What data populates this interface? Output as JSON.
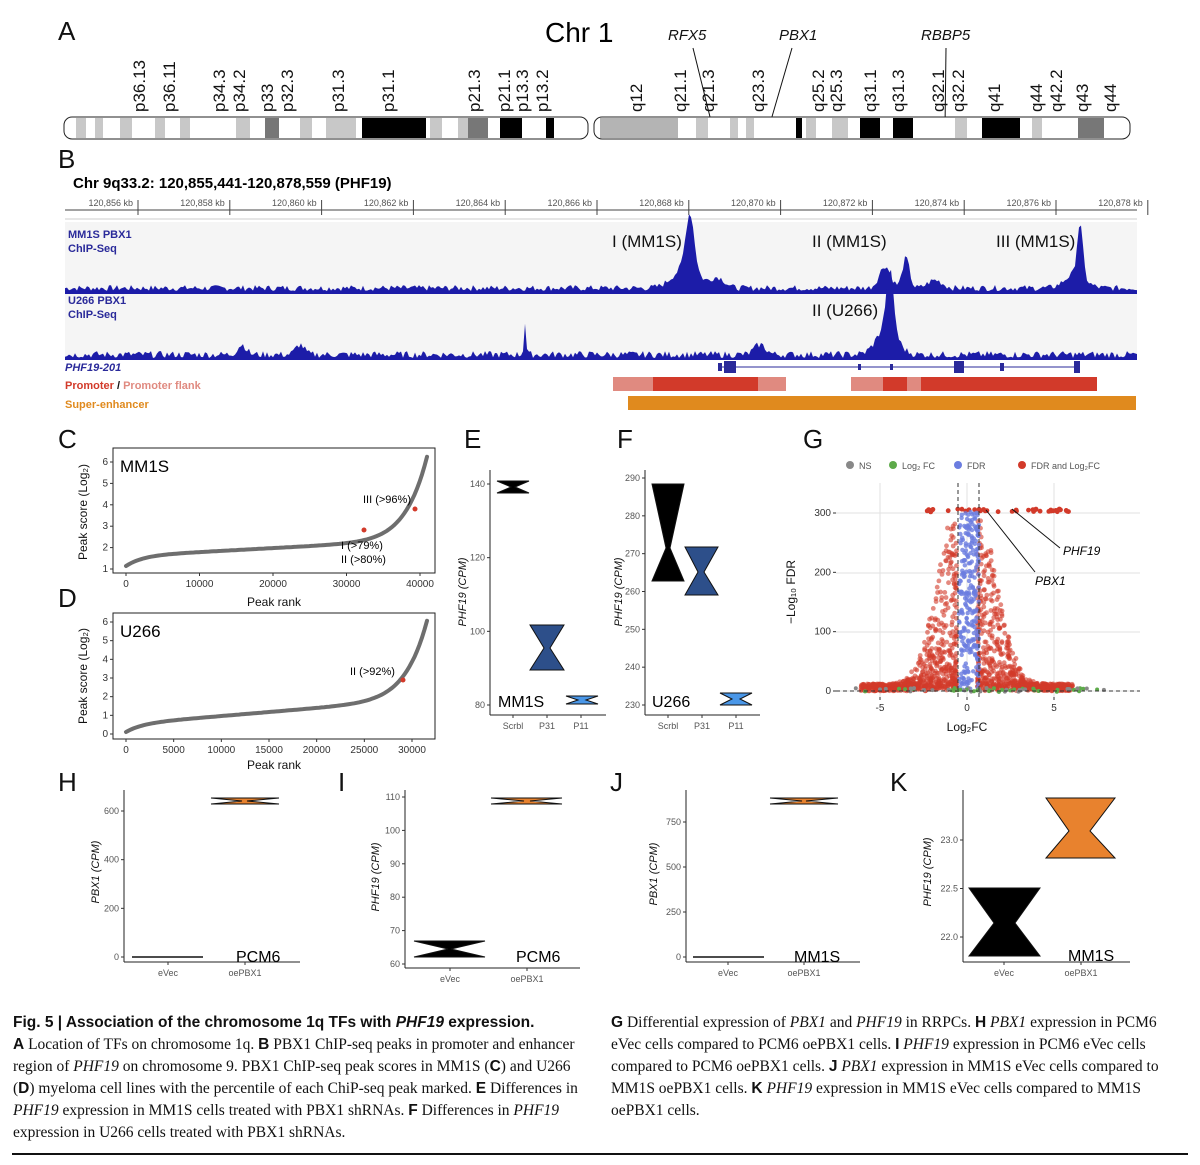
{
  "panels": {
    "A": "A",
    "B": "B",
    "C": "C",
    "D": "D",
    "E": "E",
    "F": "F",
    "G": "G",
    "H": "H",
    "I": "I",
    "J": "J",
    "K": "K"
  },
  "chr1": {
    "title": "Chr 1",
    "p_bands": [
      "p36.13",
      "p36.11",
      "p34.3",
      "p34.2",
      "p33",
      "p32.3",
      "p31.3",
      "p31.1",
      "p21.3",
      "p21.1",
      "p13.3",
      "p13.2"
    ],
    "q_bands": [
      "q12",
      "q21.1",
      "q21.3",
      "q23.3",
      "q25.2",
      "q25.3",
      "q31.1",
      "q31.3",
      "q32.1",
      "q32.2",
      "q41",
      "q44",
      "q42.2",
      "q43",
      "q44"
    ],
    "genes": [
      "RFX5",
      "PBX1",
      "RBBP5"
    ]
  },
  "chipseq": {
    "title": "Chr 9q33.2: 120,855,441-120,878,559 (PHF19)",
    "ruler": [
      "120,856 kb",
      "120,858 kb",
      "120,860 kb",
      "120,862 kb",
      "120,864 kb",
      "120,866 kb",
      "120,868 kb",
      "120,870 kb",
      "120,872 kb",
      "120,874 kb",
      "120,876 kb",
      "120,878 kb"
    ],
    "track1_l1": "MM1S PBX1",
    "track1_l2": "ChIP-Seq",
    "track2_l1": "U266 PBX1",
    "track2_l2": "ChIP-Seq",
    "peak_I": "I (MM1S)",
    "peak_II": "II (MM1S)",
    "peak_III": "III (MM1S)",
    "peak_U": "II (U266)",
    "transcript": "PHF19-201",
    "promoter": "Promoter",
    "slash": " / ",
    "promoter_flank": "Promoter flank",
    "super_enhancer": "Super-enhancer",
    "colors": {
      "signal": "#1c1ca8",
      "promoter": "#d23a2a",
      "flank": "#e08a80",
      "enhancer": "#e08a1e"
    }
  },
  "panelC": {
    "cell": "MM1S",
    "ylabel": "Peak score (Log₂)",
    "xlabel": "Peak rank",
    "yticks": [
      "1",
      "2",
      "3",
      "4",
      "5",
      "6"
    ],
    "xticks": [
      "0",
      "10000",
      "20000",
      "30000",
      "40000"
    ],
    "ann": [
      "III (>96%)",
      "I (>79%)",
      "II (>80%)"
    ]
  },
  "panelD": {
    "cell": "U266",
    "ylabel": "Peak score (Log₂)",
    "xlabel": "Peak rank",
    "yticks": [
      "0",
      "1",
      "2",
      "3",
      "4",
      "5",
      "6"
    ],
    "xticks": [
      "0",
      "5000",
      "10000",
      "15000",
      "20000",
      "25000",
      "30000"
    ],
    "ann": [
      "II (>92%)"
    ]
  },
  "panelE": {
    "cell": "MM1S",
    "ylabel": "PHF19 (CPM)",
    "yticks": [
      "80",
      "100",
      "120",
      "140"
    ],
    "xticks": [
      "Scrbl",
      "P31",
      "P11"
    ]
  },
  "panelF": {
    "cell": "U266",
    "ylabel": "PHF19 (CPM)",
    "yticks": [
      "230",
      "240",
      "250",
      "260",
      "270",
      "280",
      "290"
    ],
    "xticks": [
      "Scrbl",
      "P31",
      "P11"
    ]
  },
  "panelG": {
    "legend": [
      "NS",
      "Log₂ FC",
      "FDR",
      "FDR and Log₂FC"
    ],
    "legend_colors": [
      "#888888",
      "#5daa4a",
      "#6b7de0",
      "#d23a2a"
    ],
    "xlabel": "Log₂FC",
    "ylabel": "−Log₁₀ FDR",
    "xticks": [
      "-5",
      "0",
      "5"
    ],
    "yticks": [
      "0",
      "100",
      "200",
      "300"
    ],
    "genes": [
      "PHF19",
      "PBX1"
    ]
  },
  "panelH": {
    "cell": "PCM6",
    "ylabel": "PBX1 (CPM)",
    "yticks": [
      "0",
      "200",
      "400",
      "600"
    ],
    "xticks": [
      "eVec",
      "oePBX1"
    ]
  },
  "panelI": {
    "cell": "PCM6",
    "ylabel": "PHF19 (CPM)",
    "yticks": [
      "60",
      "70",
      "80",
      "90",
      "100",
      "110"
    ],
    "xticks": [
      "eVec",
      "oePBX1"
    ]
  },
  "panelJ": {
    "cell": "MM1S",
    "ylabel": "PBX1 (CPM)",
    "yticks": [
      "0",
      "250",
      "500",
      "750"
    ],
    "xticks": [
      "eVec",
      "oePBX1"
    ]
  },
  "panelK": {
    "cell": "MM1S",
    "ylabel": "PHF19 (CPM)",
    "yticks": [
      "22.0",
      "22.5",
      "23.0"
    ],
    "xticks": [
      "eVec",
      "oePBX1"
    ]
  },
  "caption": {
    "title_a": "Fig. 5 | Association of the chromosome 1q TFs with ",
    "title_gene": "PHF19",
    "title_b": " expression.",
    "A_lbl": "A",
    "A_txt": " Location of TFs on chromosome 1q. ",
    "B_lbl": "B",
    "B_txt": " PBX1 ChIP-seq peaks in promoter and enhancer region of ",
    "B_gene": "PHF19",
    "B_txt2": " on chromosome 9. PBX1 ChIP-seq peak scores in MM1S (",
    "C_lbl": "C",
    "C_txt": ") and U266 (",
    "D_lbl": "D",
    "D_txt": ") myeloma cell lines with the percentile of each ChiP-seq peak marked. ",
    "E_lbl": "E",
    "E_txt": " Differences in ",
    "E_gene": "PHF19",
    "E_txt2": " expression in MM1S cells treated with PBX1 shRNAs.",
    "F_lbl": "F",
    "F_txt": " Differences in ",
    "F_gene": "PHF19",
    "F_txt2": " expression in U266 cells treated with PBX1 shRNAs.",
    "G_lbl": "G",
    "G_txt": " Differential expression of ",
    "G_gene1": "PBX1",
    "G_txt2": " and ",
    "G_gene2": "PHF19",
    "G_txt3": " in RRPCs. ",
    "H_lbl": "H",
    "H_gene": "PBX1",
    "H_txt": " expression in PCM6 eVec cells compared to PCM6 oePBX1 cells. ",
    "I_lbl": "I",
    "I_gene": "PHF19",
    "I_txt": " expression in PCM6 eVec cells compared to PCM6 oePBX1 cells. ",
    "J_lbl": "J",
    "J_gene": "PBX1",
    "J_txt": " expression in MM1S eVec cells compared to MM1S oePBX1 cells. ",
    "K_lbl": "K",
    "K_gene": "PHF19",
    "K_txt": " expression in MM1S eVec cells compared to MM1S oePBX1 cells."
  }
}
